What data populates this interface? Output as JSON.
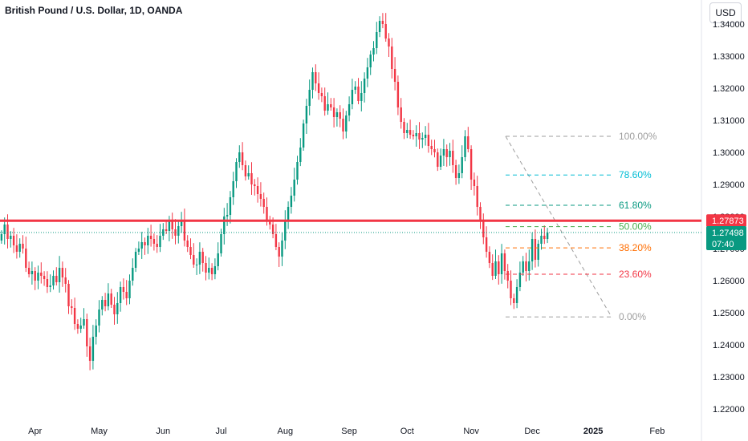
{
  "header": {
    "title": "British Pound / U.S. Dollar, 1D, OANDA",
    "currency": "USD"
  },
  "colors": {
    "up": "#089981",
    "down": "#f23645",
    "resistance": "#f23645",
    "grey": "#9e9e9e"
  },
  "chart_data": {
    "type": "candlestick",
    "title": "British Pound / U.S. Dollar, 1D, OANDA",
    "ylim": [
      1.2175,
      1.3475
    ],
    "y_ticks": [
      1.22,
      1.23,
      1.24,
      1.25,
      1.26,
      1.27,
      1.28,
      1.29,
      1.3,
      1.31,
      1.32,
      1.33,
      1.34
    ],
    "x_ticks": [
      {
        "label": "Apr",
        "bold": false,
        "bar": 11
      },
      {
        "label": "May",
        "bold": false,
        "bar": 32
      },
      {
        "label": "Jun",
        "bold": false,
        "bar": 53
      },
      {
        "label": "Jul",
        "bold": false,
        "bar": 72
      },
      {
        "label": "Aug",
        "bold": false,
        "bar": 93
      },
      {
        "label": "Sep",
        "bold": false,
        "bar": 114
      },
      {
        "label": "Oct",
        "bold": false,
        "bar": 133
      },
      {
        "label": "Nov",
        "bold": false,
        "bar": 154
      },
      {
        "label": "Dec",
        "bold": false,
        "bar": 174
      },
      {
        "label": "2025",
        "bold": true,
        "bar": 194
      },
      {
        "label": "Feb",
        "bold": false,
        "bar": 215
      }
    ],
    "closes": [
      1.2745,
      1.2775,
      1.273,
      1.274,
      1.271,
      1.269,
      1.2715,
      1.27,
      1.264,
      1.262,
      1.263,
      1.26,
      1.2625,
      1.2615,
      1.2605,
      1.258,
      1.2585,
      1.2615,
      1.2595,
      1.264,
      1.261,
      1.259,
      1.252,
      1.2515,
      1.2465,
      1.245,
      1.246,
      1.248,
      1.2395,
      1.235,
      1.2425,
      1.246,
      1.251,
      1.254,
      1.252,
      1.256,
      1.2525,
      1.2495,
      1.253,
      1.258,
      1.2565,
      1.2545,
      1.26,
      1.264,
      1.269,
      1.27,
      1.272,
      1.271,
      1.274,
      1.273,
      1.2715,
      1.2705,
      1.274,
      1.276,
      1.2755,
      1.279,
      1.276,
      1.274,
      1.277,
      1.279,
      1.2725,
      1.2705,
      1.268,
      1.265,
      1.265,
      1.269,
      1.2655,
      1.2625,
      1.264,
      1.262,
      1.2645,
      1.2685,
      1.2745,
      1.28,
      1.2805,
      1.286,
      1.291,
      1.297,
      1.3,
      1.296,
      1.2925,
      1.2935,
      1.29,
      1.2895,
      1.287,
      1.2855,
      1.283,
      1.279,
      1.2775,
      1.2745,
      1.2705,
      1.2675,
      1.2725,
      1.2785,
      1.283,
      1.2865,
      1.2915,
      1.297,
      1.3015,
      1.309,
      1.3145,
      1.3195,
      1.325,
      1.3215,
      1.3185,
      1.3175,
      1.313,
      1.315,
      1.314,
      1.311,
      1.3125,
      1.3105,
      1.3065,
      1.3115,
      1.315,
      1.3195,
      1.3205,
      1.316,
      1.3185,
      1.323,
      1.3265,
      1.3305,
      1.3325,
      1.3375,
      1.341,
      1.34,
      1.3355,
      1.333,
      1.326,
      1.322,
      1.314,
      1.3095,
      1.306,
      1.307,
      1.3055,
      1.305,
      1.306,
      1.304,
      1.3045,
      1.3055,
      1.302,
      1.301,
      1.3,
      1.2955,
      1.299,
      1.301,
      1.2985,
      1.3005,
      1.296,
      1.292,
      1.2935,
      1.2985,
      1.305,
      1.301,
      1.2915,
      1.2895,
      1.283,
      1.2785,
      1.2735,
      1.269,
      1.2655,
      1.2615,
      1.266,
      1.262,
      1.2685,
      1.263,
      1.26,
      1.2545,
      1.253,
      1.258,
      1.2625,
      1.266,
      1.263,
      1.266,
      1.273,
      1.2665,
      1.2715,
      1.274,
      1.273,
      1.275
    ],
    "resistance_level": 1.2787,
    "last_price": 1.275,
    "fibonacci": {
      "high": 1.305,
      "low": 1.2487,
      "levels": [
        {
          "ratio": 1.0,
          "label": "100.00%",
          "color": "#9e9e9e"
        },
        {
          "ratio": 0.786,
          "label": "78.60%",
          "color": "#00bcd4"
        },
        {
          "ratio": 0.618,
          "label": "61.80%",
          "color": "#089981"
        },
        {
          "ratio": 0.5,
          "label": "50.00%",
          "color": "#4caf50"
        },
        {
          "ratio": 0.382,
          "label": "38.20%",
          "color": "#ff6d00"
        },
        {
          "ratio": 0.236,
          "label": "23.60%",
          "color": "#f23645"
        },
        {
          "ratio": 0.0,
          "label": "0.00%",
          "color": "#9e9e9e"
        }
      ]
    },
    "price_tags": [
      {
        "value": "1.27873",
        "sub": "",
        "color": "#f23645"
      },
      {
        "value": "1.27498",
        "sub": "07:40",
        "color": "#089981"
      }
    ]
  }
}
